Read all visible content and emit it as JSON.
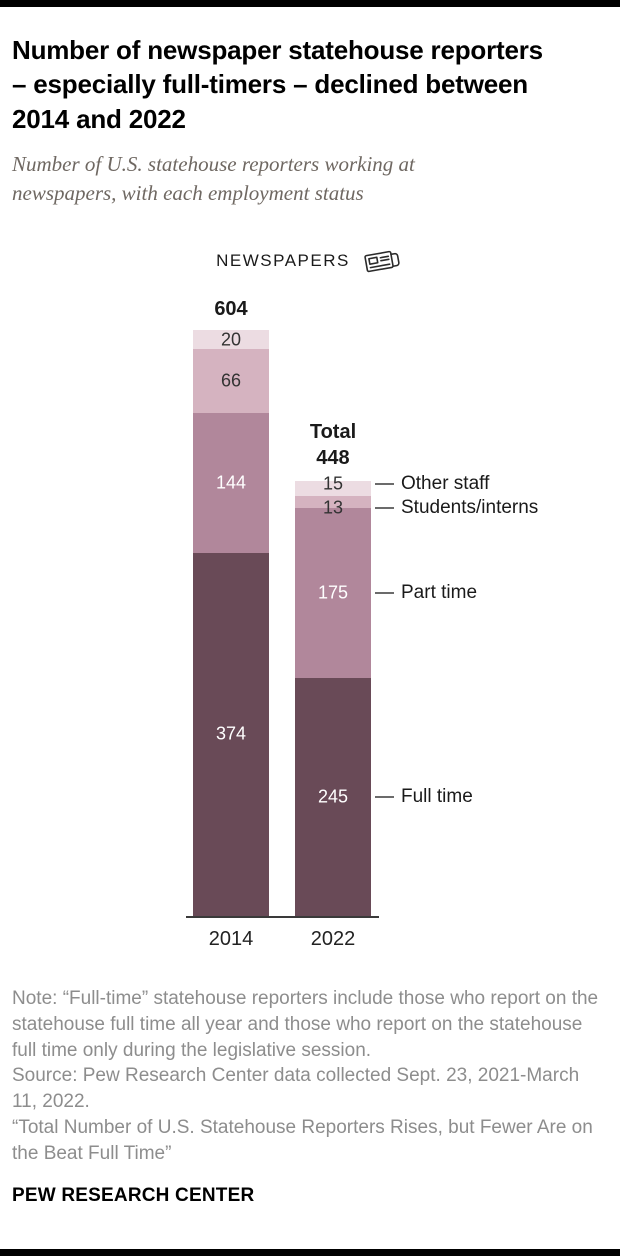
{
  "header": {
    "title": "Number of newspaper statehouse reporters – especially full-timers – declined between 2014 and 2022",
    "subtitle": "Number of U.S. statehouse reporters working at newspapers, with each employment status"
  },
  "chart_header": {
    "label": "NEWSPAPERS",
    "icon": "newspaper-icon"
  },
  "chart_data": {
    "type": "bar",
    "stacked": true,
    "categories": [
      "2014",
      "2022"
    ],
    "series": [
      {
        "name": "Full time",
        "values": [
          374,
          245
        ],
        "color": "#694a57"
      },
      {
        "name": "Part time",
        "values": [
          144,
          175
        ],
        "color": "#b1879b"
      },
      {
        "name": "Students/interns",
        "values": [
          66,
          13
        ],
        "color": "#d5b3c0"
      },
      {
        "name": "Other staff",
        "values": [
          20,
          15
        ],
        "color": "#ecdce2"
      }
    ],
    "totals": [
      604,
      448
    ],
    "total_labels": [
      "604",
      "Total\n448"
    ],
    "legend_labels": [
      "Other staff",
      "Students/interns",
      "Part time",
      "Full time"
    ],
    "xlabel": "",
    "ylabel": "",
    "ylim": [
      0,
      604
    ],
    "grid": false,
    "legend_position": "right"
  },
  "notes": {
    "note": "Note: “Full-time” statehouse reporters include those who report on the statehouse full time all year and those who report on the statehouse full time only during the legislative session.",
    "source": "Source: Pew Research Center data collected Sept. 23, 2021-March 11, 2022.",
    "report": "“Total Number of U.S. Statehouse Reporters Rises, but Fewer Are on the Beat Full Time”"
  },
  "footer": {
    "brand": "PEW RESEARCH CENTER"
  }
}
